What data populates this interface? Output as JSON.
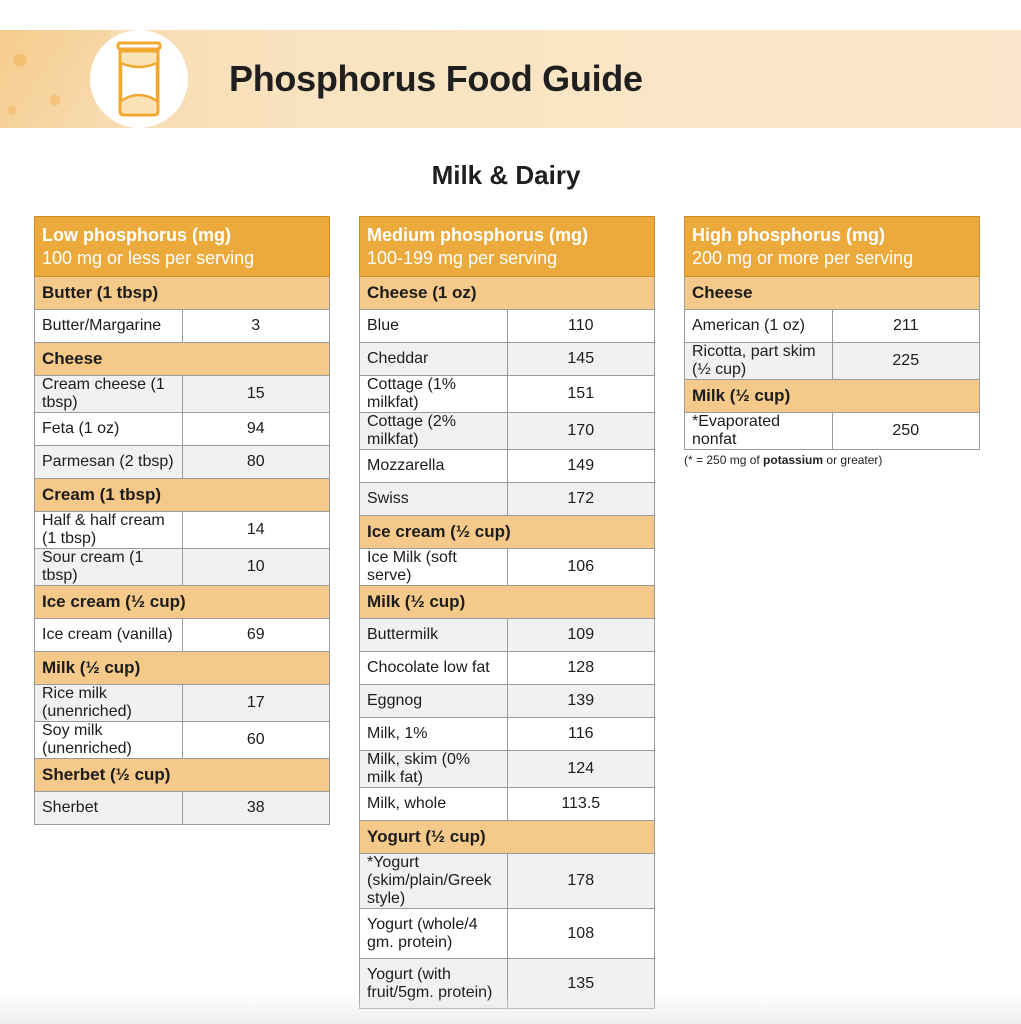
{
  "header": {
    "title": "Phosphorus Food Guide",
    "section": "Milk & Dairy",
    "icon": "milk-carton-icon",
    "accent_color": "#ecaa3c",
    "banner_color": "#f9e3c0"
  },
  "columns": {
    "low": {
      "title": "Low phosphorus (mg)",
      "subtitle": "100 mg or less per serving",
      "groups": [
        {
          "name": "Butter (1 tbsp)",
          "items": [
            [
              "Butter/Margarine",
              "3"
            ]
          ]
        },
        {
          "name": "Cheese",
          "items": [
            [
              "Cream cheese (1 tbsp)",
              "15"
            ],
            [
              "Feta (1 oz)",
              "94"
            ],
            [
              "Parmesan (2 tbsp)",
              "80"
            ]
          ]
        },
        {
          "name": "Cream (1 tbsp)",
          "items": [
            [
              "Half & half cream (1 tbsp)",
              "14"
            ],
            [
              "Sour cream (1 tbsp)",
              "10"
            ]
          ]
        },
        {
          "name": "Ice cream (½ cup)",
          "items": [
            [
              "Ice cream (vanilla)",
              "69"
            ]
          ]
        },
        {
          "name": "Milk (½ cup)",
          "items": [
            [
              "Rice milk (unenriched)",
              "17"
            ],
            [
              "Soy milk (unenriched)",
              "60"
            ]
          ]
        },
        {
          "name": "Sherbet (½ cup)",
          "items": [
            [
              "Sherbet",
              "38"
            ]
          ]
        }
      ]
    },
    "medium": {
      "title": "Medium phosphorus (mg)",
      "subtitle": "100-199 mg per serving",
      "groups": [
        {
          "name": "Cheese (1 oz)",
          "items": [
            [
              "Blue",
              "110"
            ],
            [
              "Cheddar",
              "145"
            ],
            [
              "Cottage (1% milkfat)",
              "151"
            ],
            [
              "Cottage (2% milkfat)",
              "170"
            ],
            [
              "Mozzarella",
              "149"
            ],
            [
              "Swiss",
              "172"
            ]
          ]
        },
        {
          "name": "Ice cream (½ cup)",
          "items": [
            [
              "Ice Milk (soft serve)",
              "106"
            ]
          ]
        },
        {
          "name": "Milk (½ cup)",
          "items": [
            [
              "Buttermilk",
              "109"
            ],
            [
              "Chocolate low fat",
              "128"
            ],
            [
              "Eggnog",
              "139"
            ],
            [
              "Milk, 1%",
              "116"
            ],
            [
              "Milk, skim (0% milk fat)",
              "124"
            ],
            [
              "Milk, whole",
              "113.5"
            ]
          ]
        },
        {
          "name": "Yogurt (½ cup)",
          "items": [
            [
              "*Yogurt (skim/plain/Greek style)",
              "178"
            ],
            [
              "Yogurt (whole/4 gm. protein)",
              "108"
            ],
            [
              "Yogurt (with fruit/5gm. protein)",
              "135"
            ]
          ]
        }
      ]
    },
    "high": {
      "title": "High phosphorus (mg)",
      "subtitle": "200 mg or more per serving",
      "groups": [
        {
          "name": "Cheese",
          "items": [
            [
              "American (1 oz)",
              "211"
            ],
            [
              "Ricotta, part skim (½ cup)",
              "225"
            ]
          ]
        },
        {
          "name": "Milk (½ cup)",
          "items": [
            [
              "*Evaporated nonfat",
              "250"
            ]
          ]
        }
      ]
    }
  },
  "note": {
    "prefix": "(* = 250 mg of ",
    "bold": "potassium",
    "suffix": " or greater)"
  }
}
